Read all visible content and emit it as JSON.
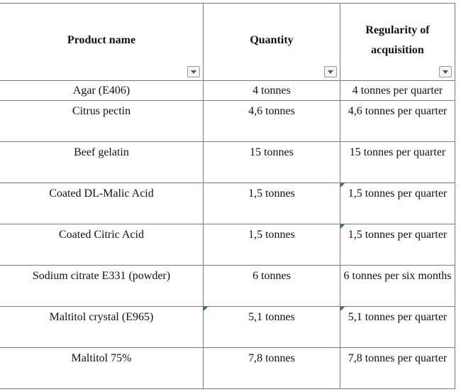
{
  "headers": {
    "product": "Product name",
    "quantity": "Quantity",
    "regularity_line1": "Regularity of",
    "regularity_line2": "acquisition"
  },
  "rows": [
    {
      "product": "Agar (E406)",
      "quantity": "4 tonnes",
      "regularity": "4 tonnes per quarter"
    },
    {
      "product": "Citrus pectin",
      "quantity": "4,6 tonnes",
      "regularity": "4,6 tonnes per quarter"
    },
    {
      "product": "Beef gelatin",
      "quantity": "15 tonnes",
      "regularity": "15 tonnes per quarter"
    },
    {
      "product": "Coated DL-Malic Acid",
      "quantity": "1,5 tonnes",
      "regularity": "1,5 tonnes per quarter"
    },
    {
      "product": "Coated Citric Acid",
      "quantity": "1,5 tonnes",
      "regularity": "1,5 tonnes per quarter"
    },
    {
      "product": "Sodium citrate E331 (powder)",
      "quantity": "6 tonnes",
      "regularity": "6 tonnes per six months"
    },
    {
      "product": "Maltitol crystal (E965)",
      "quantity": "5,1 tonnes",
      "regularity": "5,1 tonnes per quarter"
    },
    {
      "product": "Maltitol 75%",
      "quantity": "7,8 tonnes",
      "regularity": "7,8 tonnes per quarter"
    }
  ],
  "colors": {
    "border": "#7a7a7a",
    "comment_marker": "#2e7d32"
  },
  "icons": {
    "filter": "filter-dropdown-icon",
    "marker": "comment-marker-icon"
  }
}
